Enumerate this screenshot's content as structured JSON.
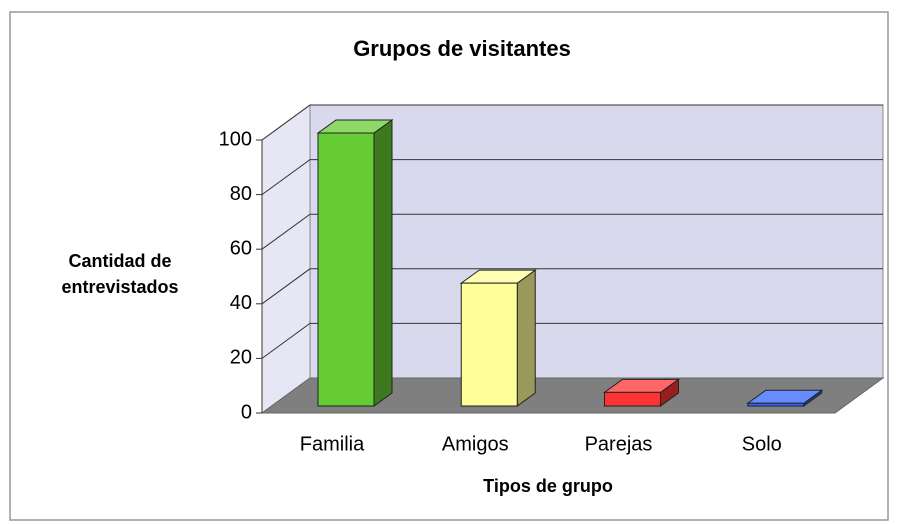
{
  "chart_data": {
    "type": "bar3d",
    "title": "Grupos de visitantes",
    "categories": [
      "Familia",
      "Amigos",
      "Parejas",
      "Solo"
    ],
    "values": [
      100,
      45,
      5,
      1
    ],
    "colors": [
      "#66cc33",
      "#ffff99",
      "#ff3333",
      "#3366ff"
    ],
    "ylim": [
      0,
      100
    ],
    "yticks": [
      0,
      20,
      40,
      60,
      80,
      100
    ],
    "xlabel": "Tipos de grupo",
    "ylabel": "Cantidad de entrevistados",
    "grid": true
  }
}
